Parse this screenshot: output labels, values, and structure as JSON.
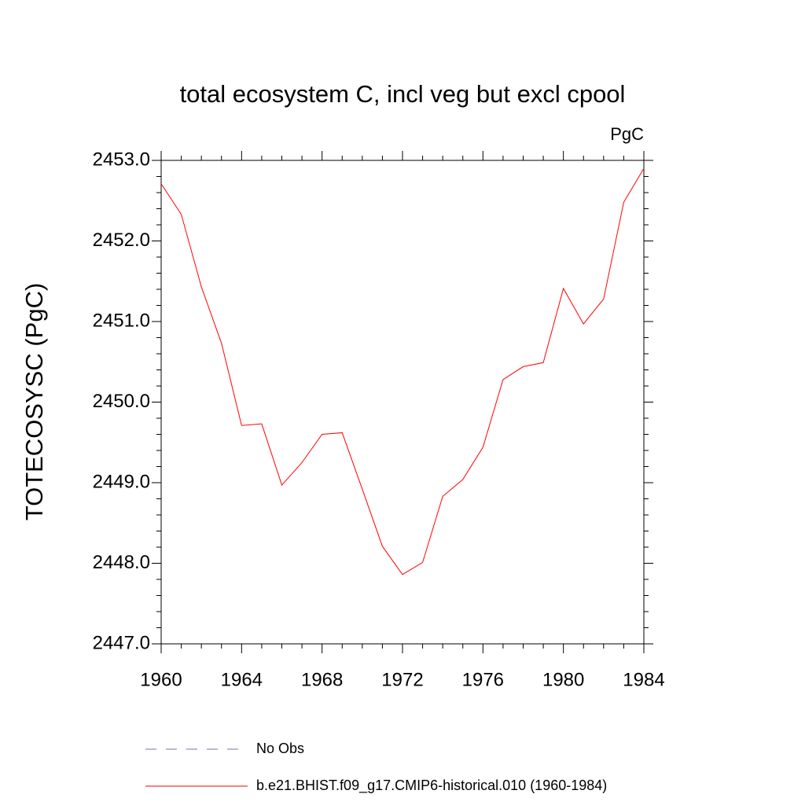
{
  "chart_data": {
    "type": "line",
    "title": "total ecosystem C, incl veg but excl cpool",
    "units": "PgC",
    "y_label": "TOTECOSYSC  (PgC)",
    "x": [
      1960,
      1961,
      1962,
      1963,
      1964,
      1965,
      1966,
      1967,
      1968,
      1969,
      1970,
      1971,
      1972,
      1973,
      1974,
      1975,
      1976,
      1977,
      1978,
      1979,
      1980,
      1981,
      1982,
      1983,
      1984
    ],
    "series": [
      {
        "name": "No Obs",
        "color": "#7a70b0",
        "dash": true,
        "values": [
          null,
          null,
          null,
          null,
          null,
          null,
          null,
          null,
          null,
          null,
          null,
          null,
          null,
          null,
          null,
          null,
          null,
          null,
          null,
          null,
          null,
          null,
          null,
          null,
          null
        ]
      },
      {
        "name": "b.e21.BHIST.f09_g17.CMIP6-historical.010 (1960-1984)",
        "color": "#ff0000",
        "dash": false,
        "values": [
          2452.71,
          2452.33,
          2451.43,
          2450.73,
          2449.71,
          2449.73,
          2448.97,
          2449.25,
          2449.6,
          2449.62,
          2448.92,
          2448.21,
          2447.86,
          2448.01,
          2448.83,
          2449.04,
          2449.44,
          2450.28,
          2450.44,
          2450.49,
          2451.41,
          2450.97,
          2451.28,
          2452.48,
          2452.9
        ]
      }
    ],
    "xlim": [
      1960,
      1984
    ],
    "xticks": [
      1960,
      1964,
      1968,
      1972,
      1976,
      1980,
      1984
    ],
    "ylim": [
      2447,
      2453
    ],
    "yticks": [
      {
        "value": 2447,
        "label": "2447.0"
      },
      {
        "value": 2448,
        "label": "2448.0"
      },
      {
        "value": 2449,
        "label": "2449.0"
      },
      {
        "value": 2450,
        "label": "2450.0"
      },
      {
        "value": 2451,
        "label": "2451.0"
      },
      {
        "value": 2452,
        "label": "2452.0"
      },
      {
        "value": 2453,
        "label": "2453.0"
      }
    ],
    "minor_ticks": true,
    "grid": false
  }
}
